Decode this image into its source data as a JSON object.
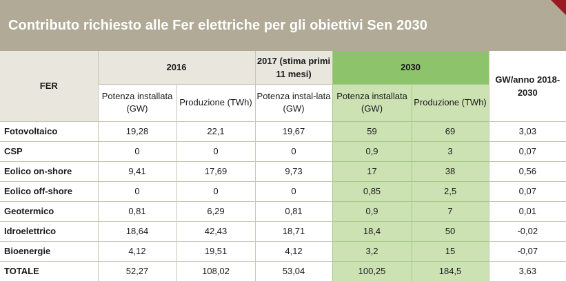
{
  "title": "Contributo richiesto alle Fer elettriche per gli obiettivi Sen 2030",
  "colors": {
    "title_bar": "#b0aa97",
    "corner": "#9a1a20",
    "header_bg": "#e9e6de",
    "green_header": "#8dc46b",
    "green_cells": "#cce2b3"
  },
  "headers": {
    "fer": "FER",
    "y2016": "2016",
    "y2017": "2017 (stima primi 11 mesi)",
    "y2030": "2030",
    "gw_anno": "GW/anno 2018-2030",
    "potenza_2016": "Potenza installata (GW)",
    "produzione_2016": "Produzione (TWh)",
    "potenza_2017": "Potenza instal-lata (GW)",
    "potenza_2030": "Potenza installata (GW)",
    "produzione_2030": "Produzione (TWh)"
  },
  "rows": [
    {
      "name": "Fotovoltaico",
      "values": [
        "19,28",
        "22,1",
        "19,67",
        "59",
        "69",
        "3,03"
      ]
    },
    {
      "name": "CSP",
      "values": [
        "0",
        "0",
        "0",
        "0,9",
        "3",
        "0,07"
      ]
    },
    {
      "name": "Eolico on-shore",
      "values": [
        "9,41",
        "17,69",
        "9,73",
        "17",
        "38",
        "0,56"
      ]
    },
    {
      "name": "Eolico off-shore",
      "values": [
        "0",
        "0",
        "0",
        "0,85",
        "2,5",
        "0,07"
      ]
    },
    {
      "name": "Geotermico",
      "values": [
        "0,81",
        "6,29",
        "0,81",
        "0,9",
        "7",
        "0,01"
      ]
    },
    {
      "name": "Idroelettrico",
      "values": [
        "18,64",
        "42,43",
        "18,71",
        "18,4",
        "50",
        "-0,02"
      ]
    },
    {
      "name": "Bioenergie",
      "values": [
        "4,12",
        "19,51",
        "4,12",
        "3,2",
        "15",
        "-0,07"
      ]
    },
    {
      "name": "TOTALE",
      "values": [
        "52,27",
        "108,02",
        "53,04",
        "100,25",
        "184,5",
        "3,63"
      ]
    }
  ]
}
